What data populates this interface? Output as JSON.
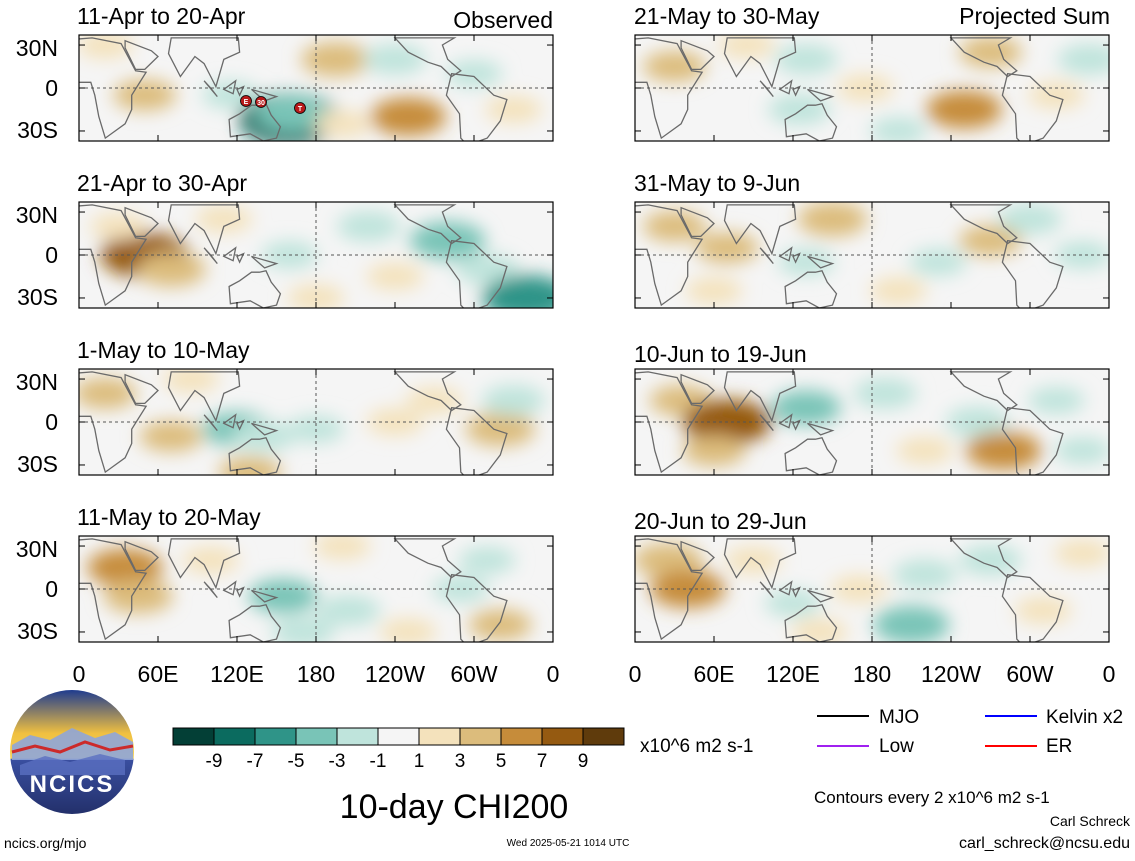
{
  "left_header_right": "Observed",
  "right_header_right": "Projected Sum",
  "lat_ticks": [
    "30N",
    "0",
    "30S"
  ],
  "lon_ticks": [
    "0",
    "60E",
    "120E",
    "180",
    "120W",
    "60W",
    "0"
  ],
  "colorbar": {
    "colors": [
      "#033f36",
      "#0b6b5f",
      "#2f9488",
      "#79c4b7",
      "#bfe4dc",
      "#f5f5f5",
      "#f4e2bc",
      "#dcbc7c",
      "#c68c3a",
      "#955a11",
      "#5f3b0c"
    ],
    "labels": [
      "-9",
      "-7",
      "-5",
      "-3",
      "-1",
      "1",
      "3",
      "5",
      "7",
      "9"
    ],
    "units": "x10^6 m2 s-1"
  },
  "title": "10-day CHI200",
  "legend": [
    {
      "label": "MJO",
      "color": "#000000"
    },
    {
      "label": "Kelvin x2",
      "color": "#0000ff"
    },
    {
      "label": "Low",
      "color": "#a020f0"
    },
    {
      "label": "ER",
      "color": "#ff0000"
    }
  ],
  "contours_note": "Contours every 2 x10^6 m2 s-1",
  "author": "Carl Schreck",
  "email": "carl_schreck@ncsu.edu",
  "url": "ncics.org/mjo",
  "timestamp": "Wed 2025-05-21 1014 UTC",
  "logo_text": "NCICS",
  "storm_labels": [
    "E",
    "30",
    "T"
  ],
  "chart_data": [
    {
      "type": "heatmap",
      "title": "11-Apr to 20-Apr",
      "blobs": [
        {
          "lon": 50,
          "lat": -5,
          "v": 3
        },
        {
          "lon": 115,
          "lat": -5,
          "v": -2
        },
        {
          "lon": 160,
          "lat": -22,
          "v": -9
        },
        {
          "lon": 162,
          "lat": -18,
          "v": -5
        },
        {
          "lon": 195,
          "lat": 20,
          "v": 4
        },
        {
          "lon": 250,
          "lat": -20,
          "v": 5
        },
        {
          "lon": 240,
          "lat": 20,
          "v": -3
        },
        {
          "lon": 300,
          "lat": 10,
          "v": -2
        },
        {
          "lon": 330,
          "lat": -15,
          "v": 2
        },
        {
          "lon": 20,
          "lat": 30,
          "v": 2
        },
        {
          "lon": 200,
          "lat": -25,
          "v": 2
        }
      ]
    },
    {
      "type": "heatmap",
      "title": "21-Apr to 30-Apr",
      "blobs": [
        {
          "lon": 50,
          "lat": 0,
          "v": 7
        },
        {
          "lon": 70,
          "lat": -10,
          "v": 4
        },
        {
          "lon": 30,
          "lat": 20,
          "v": 2
        },
        {
          "lon": 110,
          "lat": 25,
          "v": 2
        },
        {
          "lon": 280,
          "lat": 10,
          "v": -5
        },
        {
          "lon": 310,
          "lat": -10,
          "v": -3
        },
        {
          "lon": 340,
          "lat": -30,
          "v": -7
        },
        {
          "lon": 220,
          "lat": 20,
          "v": -3
        },
        {
          "lon": 160,
          "lat": 0,
          "v": -2
        },
        {
          "lon": 180,
          "lat": -30,
          "v": 2
        },
        {
          "lon": 240,
          "lat": -15,
          "v": 2
        }
      ]
    },
    {
      "type": "heatmap",
      "title": "1-May to 10-May",
      "blobs": [
        {
          "lon": 20,
          "lat": 20,
          "v": 3
        },
        {
          "lon": 70,
          "lat": -10,
          "v": 3
        },
        {
          "lon": 120,
          "lat": -5,
          "v": -4
        },
        {
          "lon": 140,
          "lat": -10,
          "v": -3
        },
        {
          "lon": 180,
          "lat": -5,
          "v": -2
        },
        {
          "lon": 240,
          "lat": 0,
          "v": 2
        },
        {
          "lon": 270,
          "lat": 15,
          "v": 2
        },
        {
          "lon": 320,
          "lat": -5,
          "v": 4
        },
        {
          "lon": 330,
          "lat": 15,
          "v": -3
        },
        {
          "lon": 85,
          "lat": 30,
          "v": 2
        },
        {
          "lon": 130,
          "lat": -35,
          "v": 3
        }
      ]
    },
    {
      "type": "heatmap",
      "title": "11-May to 20-May",
      "blobs": [
        {
          "lon": 35,
          "lat": 15,
          "v": 5
        },
        {
          "lon": 45,
          "lat": -5,
          "v": 4
        },
        {
          "lon": 100,
          "lat": 20,
          "v": 2
        },
        {
          "lon": 155,
          "lat": -5,
          "v": -4
        },
        {
          "lon": 170,
          "lat": -30,
          "v": -3
        },
        {
          "lon": 205,
          "lat": -15,
          "v": -3
        },
        {
          "lon": 250,
          "lat": -30,
          "v": 2
        },
        {
          "lon": 290,
          "lat": 0,
          "v": -2
        },
        {
          "lon": 320,
          "lat": -25,
          "v": 3
        },
        {
          "lon": 310,
          "lat": 20,
          "v": -2
        },
        {
          "lon": 200,
          "lat": 30,
          "v": 2
        }
      ]
    },
    {
      "type": "heatmap",
      "title": "21-May to 30-May",
      "blobs": [
        {
          "lon": 30,
          "lat": 15,
          "v": 3
        },
        {
          "lon": 85,
          "lat": 30,
          "v": 2
        },
        {
          "lon": 130,
          "lat": 20,
          "v": -3
        },
        {
          "lon": 125,
          "lat": -15,
          "v": -3
        },
        {
          "lon": 250,
          "lat": -15,
          "v": 5
        },
        {
          "lon": 270,
          "lat": 25,
          "v": 3
        },
        {
          "lon": 320,
          "lat": -5,
          "v": 2
        },
        {
          "lon": 345,
          "lat": 20,
          "v": -3
        },
        {
          "lon": 200,
          "lat": -30,
          "v": -2
        },
        {
          "lon": 175,
          "lat": 0,
          "v": 2
        }
      ]
    },
    {
      "type": "heatmap",
      "title": "31-May to 9-Jun",
      "blobs": [
        {
          "lon": 30,
          "lat": 20,
          "v": 3
        },
        {
          "lon": 70,
          "lat": 5,
          "v": 3
        },
        {
          "lon": 60,
          "lat": -25,
          "v": 2
        },
        {
          "lon": 150,
          "lat": 25,
          "v": 4
        },
        {
          "lon": 130,
          "lat": -5,
          "v": -2
        },
        {
          "lon": 230,
          "lat": -5,
          "v": -2
        },
        {
          "lon": 270,
          "lat": 10,
          "v": 3
        },
        {
          "lon": 300,
          "lat": 25,
          "v": -3
        },
        {
          "lon": 340,
          "lat": 0,
          "v": -2
        },
        {
          "lon": 200,
          "lat": -25,
          "v": 2
        }
      ]
    },
    {
      "type": "heatmap",
      "title": "10-Jun to 19-Jun",
      "blobs": [
        {
          "lon": 35,
          "lat": 15,
          "v": 3
        },
        {
          "lon": 70,
          "lat": 0,
          "v": 7
        },
        {
          "lon": 60,
          "lat": -20,
          "v": 3
        },
        {
          "lon": 130,
          "lat": 10,
          "v": -4
        },
        {
          "lon": 190,
          "lat": 20,
          "v": -3
        },
        {
          "lon": 260,
          "lat": 0,
          "v": -3
        },
        {
          "lon": 280,
          "lat": -20,
          "v": 5
        },
        {
          "lon": 320,
          "lat": 15,
          "v": -2
        },
        {
          "lon": 220,
          "lat": -20,
          "v": 2
        },
        {
          "lon": 340,
          "lat": -20,
          "v": -2
        }
      ]
    },
    {
      "type": "heatmap",
      "title": "20-Jun to 29-Jun",
      "blobs": [
        {
          "lon": 25,
          "lat": 20,
          "v": 4
        },
        {
          "lon": 40,
          "lat": 0,
          "v": 5
        },
        {
          "lon": 90,
          "lat": 20,
          "v": 2
        },
        {
          "lon": 120,
          "lat": -10,
          "v": -2
        },
        {
          "lon": 170,
          "lat": 0,
          "v": 2
        },
        {
          "lon": 210,
          "lat": -25,
          "v": -5
        },
        {
          "lon": 220,
          "lat": 10,
          "v": -3
        },
        {
          "lon": 270,
          "lat": 20,
          "v": -3
        },
        {
          "lon": 310,
          "lat": -15,
          "v": 2
        },
        {
          "lon": 140,
          "lat": -30,
          "v": 2
        },
        {
          "lon": 340,
          "lat": 25,
          "v": 2
        }
      ]
    }
  ]
}
